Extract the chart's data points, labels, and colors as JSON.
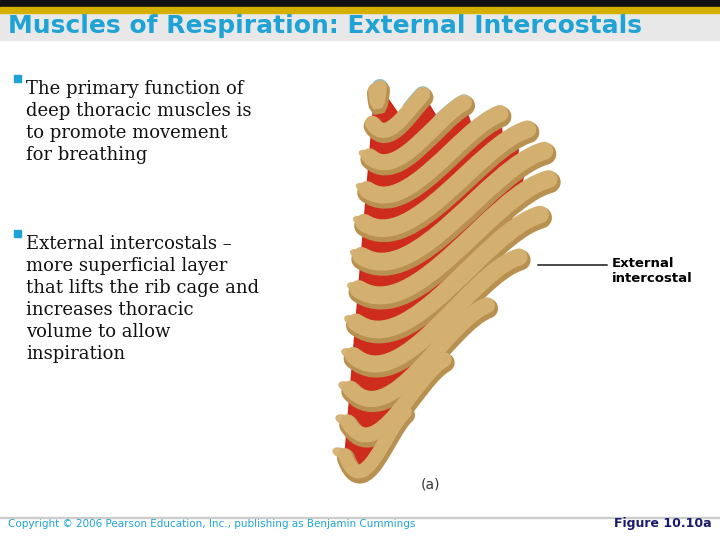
{
  "title": "Muscles of Respiration: External Intercostals",
  "title_color": "#1FA3D4",
  "header_line1_color": "#111111",
  "header_line2_color": "#D4B000",
  "bullet1_lines": [
    "The primary function of",
    "deep thoracic muscles is",
    "to promote movement",
    "for breathing"
  ],
  "bullet2_lines": [
    "External intercostals –",
    "more superficial layer",
    "that lifts the rib cage and",
    "increases thoracic",
    "volume to allow",
    "inspiration"
  ],
  "label_text": "External\nintercostal",
  "label_color": "#000000",
  "fig_label": "(a)",
  "fig_label_color": "#333333",
  "copyright_text": "Copyright © 2006 Pearson Education, Inc., publishing as Benjamin Cummings",
  "figure_ref": "Figure 10.10a",
  "footer_color": "#1FA3D4",
  "footer_ref_color": "#1a1a6e",
  "bullet_color": "#1FA3D4",
  "text_color": "#111111",
  "bg_color": "#FFFFFF",
  "rib_bone_color": "#D4B070",
  "rib_muscle_color": "#CC2010",
  "rib_cartilage_color": "#80B8C0",
  "rib_shadow_color": "#B89050",
  "title_header_bg": "#F0F0F0"
}
